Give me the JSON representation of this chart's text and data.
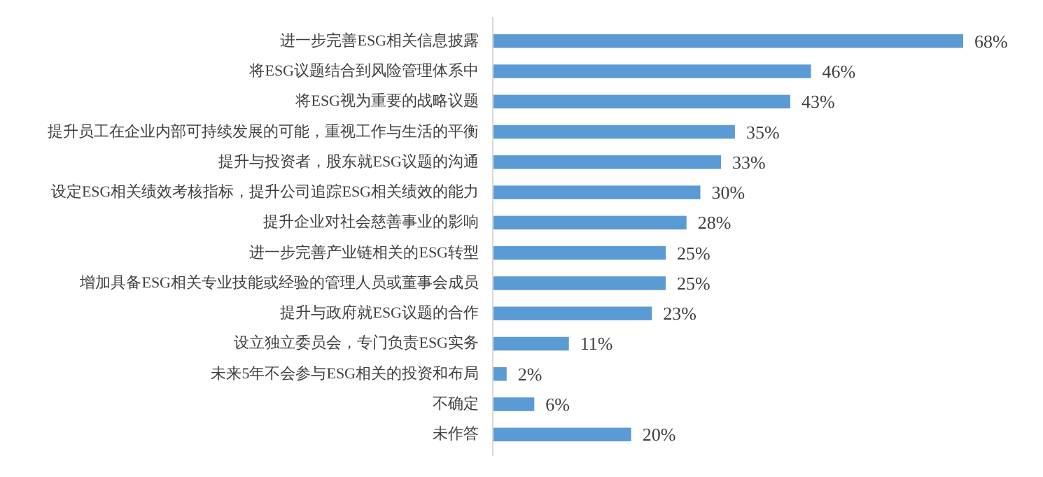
{
  "chart_data": {
    "type": "bar",
    "orientation": "horizontal",
    "color": "#5b9bd5",
    "categories": [
      "进一步完善ESG相关信息披露",
      "将ESG议题结合到风险管理体系中",
      "将ESG视为重要的战略议题",
      "提升员工在企业内部可持续发展的可能，重视工作与生活的平衡",
      "提升与投资者，股东就ESG议题的沟通",
      "设定ESG相关绩效考核指标，提升公司追踪ESG相关绩效的能力",
      "提升企业对社会慈善事业的影响",
      "进一步完善产业链相关的ESG转型",
      "增加具备ESG相关专业技能或经验的管理人员或董事会成员",
      "提升与政府就ESG议题的合作",
      "设立独立委员会，专门负责ESG实务",
      "未来5年不会参与ESG相关的投资和布局",
      "不确定",
      "未作答"
    ],
    "values": [
      68,
      46,
      43,
      35,
      33,
      30,
      28,
      25,
      25,
      23,
      11,
      2,
      6,
      20
    ],
    "value_labels": [
      "68%",
      "46%",
      "43%",
      "35%",
      "33%",
      "30%",
      "28%",
      "25%",
      "25%",
      "23%",
      "11%",
      "2%",
      "6%",
      "20%"
    ]
  }
}
